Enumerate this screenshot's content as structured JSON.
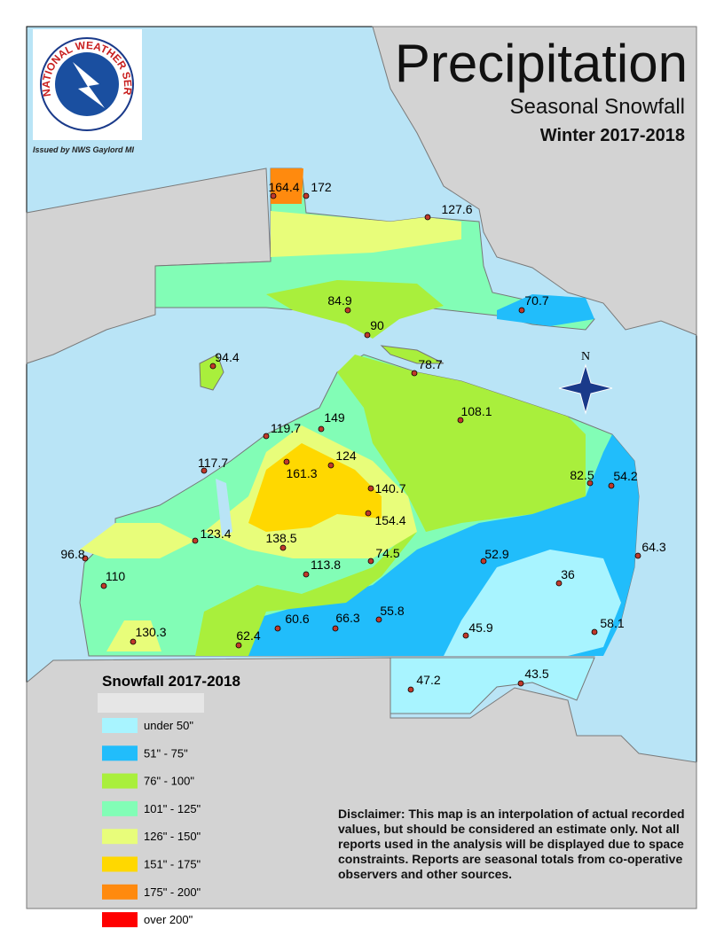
{
  "header": {
    "title": "Precipitation",
    "subtitle": "Seasonal Snowfall",
    "season": "Winter 2017-2018",
    "issued": "Issued by NWS Gaylord MI",
    "logo": "NATIONAL WEATHER SERVICE"
  },
  "compass": "N",
  "stations": [
    164.4,
    172,
    127.6,
    84.9,
    90,
    70.7,
    94.4,
    78.7,
    108.1,
    149,
    119.7,
    124,
    117.7,
    161.3,
    140.7,
    82.5,
    54.2,
    154.4,
    123.4,
    138.5,
    96.8,
    74.5,
    64.3,
    52.9,
    113.8,
    110,
    36,
    60.6,
    66.3,
    55.8,
    58.1,
    45.9,
    62.4,
    130.3,
    47.2,
    43.5
  ],
  "legend": {
    "title": "Snowfall 2017-2018",
    "entries": [
      {
        "label": "under 50\"",
        "color": "#a8f4ff"
      },
      {
        "label": "51\" - 75\"",
        "color": "#21bdfb"
      },
      {
        "label": "76\" - 100\"",
        "color": "#a9ef3c"
      },
      {
        "label": "101\" - 125\"",
        "color": "#82fdb6"
      },
      {
        "label": "126\" - 150\"",
        "color": "#e8fd7a"
      },
      {
        "label": "151\" - 175\"",
        "color": "#ffd800"
      },
      {
        "label": "175\" - 200\"",
        "color": "#ff8a0e"
      },
      {
        "label": "over 200\"",
        "color": "#ff0000"
      }
    ]
  },
  "disclaimer": "Disclaimer: This map is an interpolation of actual recorded values, but should be considered an estimate only. Not all reports used in the analysis will be displayed due to space constraints. Reports are seasonal totals from co-operative observers and other sources."
}
